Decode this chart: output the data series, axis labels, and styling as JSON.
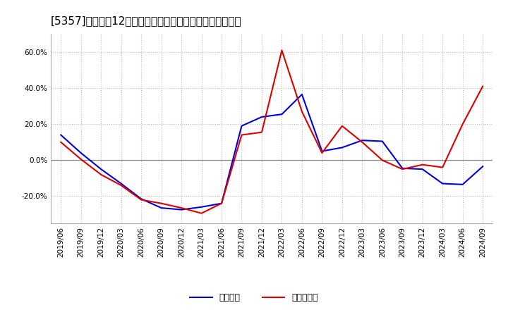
{
  "title": "[5357]　利益だ12か月移動合計の対前年同期増減率の推移",
  "background_color": "#ffffff",
  "plot_background_color": "#ffffff",
  "grid_color": "#bbbbbb",
  "zero_line_color": "#888888",
  "blue_color": "#0000dd",
  "red_color": "#dd0000",
  "legend_labels": [
    "経常利益",
    "当期純利益"
  ],
  "x_tick_labels": [
    "2019/06",
    "2019/09",
    "2019/12",
    "2020/03",
    "2020/06",
    "2020/09",
    "2020/12",
    "2021/03",
    "2021/06",
    "2021/09",
    "2021/12",
    "2022/03",
    "2022/06",
    "2022/09",
    "2022/12",
    "2023/03",
    "2023/06",
    "2023/09",
    "2023/12",
    "2024/03",
    "2024/06",
    "2024/09"
  ],
  "blue_values": [
    14.0,
    4.0,
    -5.0,
    -13.0,
    -21.5,
    -26.5,
    -27.5,
    -26.0,
    -24.0,
    19.0,
    24.0,
    25.5,
    36.5,
    5.0,
    7.0,
    11.0,
    10.5,
    -4.5,
    -5.0,
    -13.0,
    -13.5,
    -3.5
  ],
  "red_values": [
    10.0,
    0.5,
    -8.0,
    -14.0,
    -22.0,
    -24.0,
    -26.5,
    -29.5,
    -24.0,
    14.0,
    15.5,
    61.0,
    27.0,
    4.0,
    19.0,
    10.0,
    0.0,
    -5.0,
    -2.5,
    -4.0,
    20.0,
    41.0
  ],
  "ylim": [
    -35,
    70
  ],
  "yticks": [
    -20.0,
    0.0,
    20.0,
    40.0,
    60.0
  ],
  "title_fontsize": 11,
  "legend_fontsize": 9,
  "tick_fontsize": 7.5
}
